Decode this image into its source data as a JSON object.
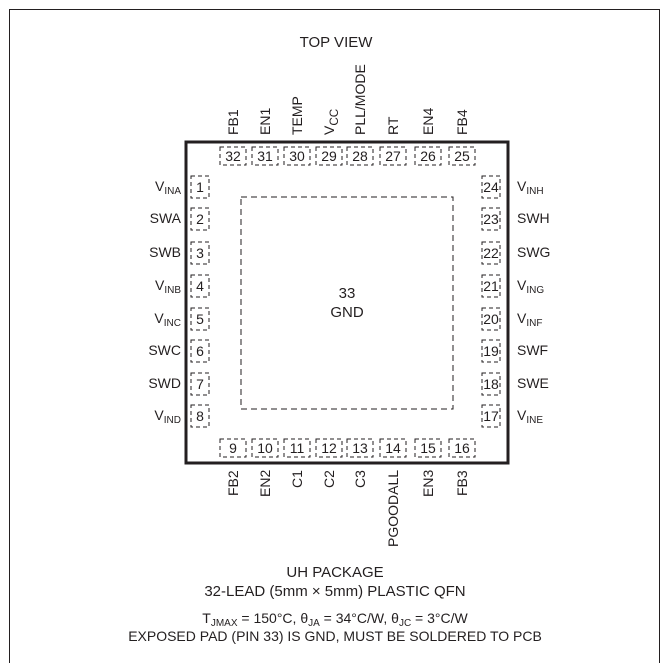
{
  "header": {
    "title": "TOP VIEW"
  },
  "pins": {
    "left": [
      {
        "num": "1",
        "name": "V",
        "sub": "INA"
      },
      {
        "num": "2",
        "name": "SWA",
        "sub": ""
      },
      {
        "num": "3",
        "name": "SWB",
        "sub": ""
      },
      {
        "num": "4",
        "name": "V",
        "sub": "INB"
      },
      {
        "num": "5",
        "name": "V",
        "sub": "INC"
      },
      {
        "num": "6",
        "name": "SWC",
        "sub": ""
      },
      {
        "num": "7",
        "name": "SWD",
        "sub": ""
      },
      {
        "num": "8",
        "name": "V",
        "sub": "IND"
      }
    ],
    "bottom": [
      {
        "num": "9",
        "name": "FB2"
      },
      {
        "num": "10",
        "name": "EN2"
      },
      {
        "num": "11",
        "name": "C1"
      },
      {
        "num": "12",
        "name": "C2"
      },
      {
        "num": "13",
        "name": "C3"
      },
      {
        "num": "14",
        "name": "PGOODALL"
      },
      {
        "num": "15",
        "name": "EN3"
      },
      {
        "num": "16",
        "name": "FB3"
      }
    ],
    "right": [
      {
        "num": "17",
        "name": "V",
        "sub": "INE"
      },
      {
        "num": "18",
        "name": "SWE",
        "sub": ""
      },
      {
        "num": "19",
        "name": "SWF",
        "sub": ""
      },
      {
        "num": "20",
        "name": "V",
        "sub": "INF"
      },
      {
        "num": "21",
        "name": "V",
        "sub": "ING"
      },
      {
        "num": "22",
        "name": "SWG",
        "sub": ""
      },
      {
        "num": "23",
        "name": "SWH",
        "sub": ""
      },
      {
        "num": "24",
        "name": "V",
        "sub": "INH"
      }
    ],
    "top": [
      {
        "num": "25",
        "name": "FB4",
        "sub": ""
      },
      {
        "num": "26",
        "name": "EN4",
        "sub": ""
      },
      {
        "num": "27",
        "name": "RT",
        "sub": ""
      },
      {
        "num": "28",
        "name": "PLL/MODE",
        "sub": ""
      },
      {
        "num": "29",
        "name": "V",
        "sub": "CC"
      },
      {
        "num": "30",
        "name": "TEMP",
        "sub": ""
      },
      {
        "num": "31",
        "name": "EN1",
        "sub": ""
      },
      {
        "num": "32",
        "name": "FB1",
        "sub": ""
      }
    ]
  },
  "exposed_pad": {
    "num": "33",
    "name": "GND"
  },
  "footer": {
    "package": "UH PACKAGE",
    "description": "32-LEAD (5mm × 5mm) PLASTIC QFN",
    "thermal": {
      "t": "T",
      "t_sub": "JMAX",
      "t_val": " = 150°C, ",
      "ja": "θ",
      "ja_sub": "JA",
      "ja_val": " = 34°C/W, ",
      "jc": "θ",
      "jc_sub": "JC",
      "jc_val": " = 3°C/W"
    },
    "note": "EXPOSED PAD (PIN 33) IS GND, MUST BE SOLDERED TO PCB"
  },
  "colors": {
    "ink": "#231f20",
    "background": "#ffffff"
  }
}
